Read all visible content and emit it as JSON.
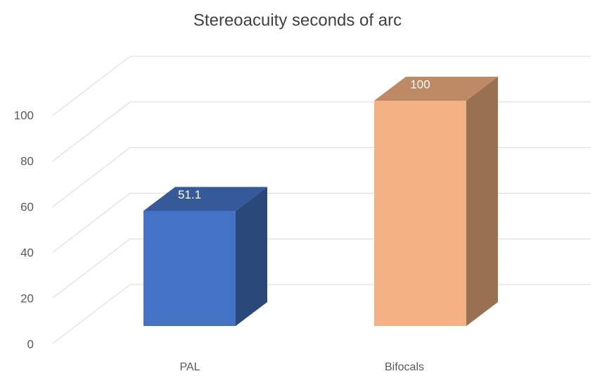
{
  "chart_data": {
    "type": "bar",
    "title": "Stereoacuity seconds of arc",
    "categories": [
      "PAL",
      "Bifocals"
    ],
    "values": [
      51.1,
      100
    ],
    "colors": [
      "#4472c4",
      "#f4b183"
    ],
    "ylim": [
      0,
      100
    ],
    "yticks": [
      0,
      20,
      40,
      60,
      80,
      100
    ],
    "grid": true
  }
}
